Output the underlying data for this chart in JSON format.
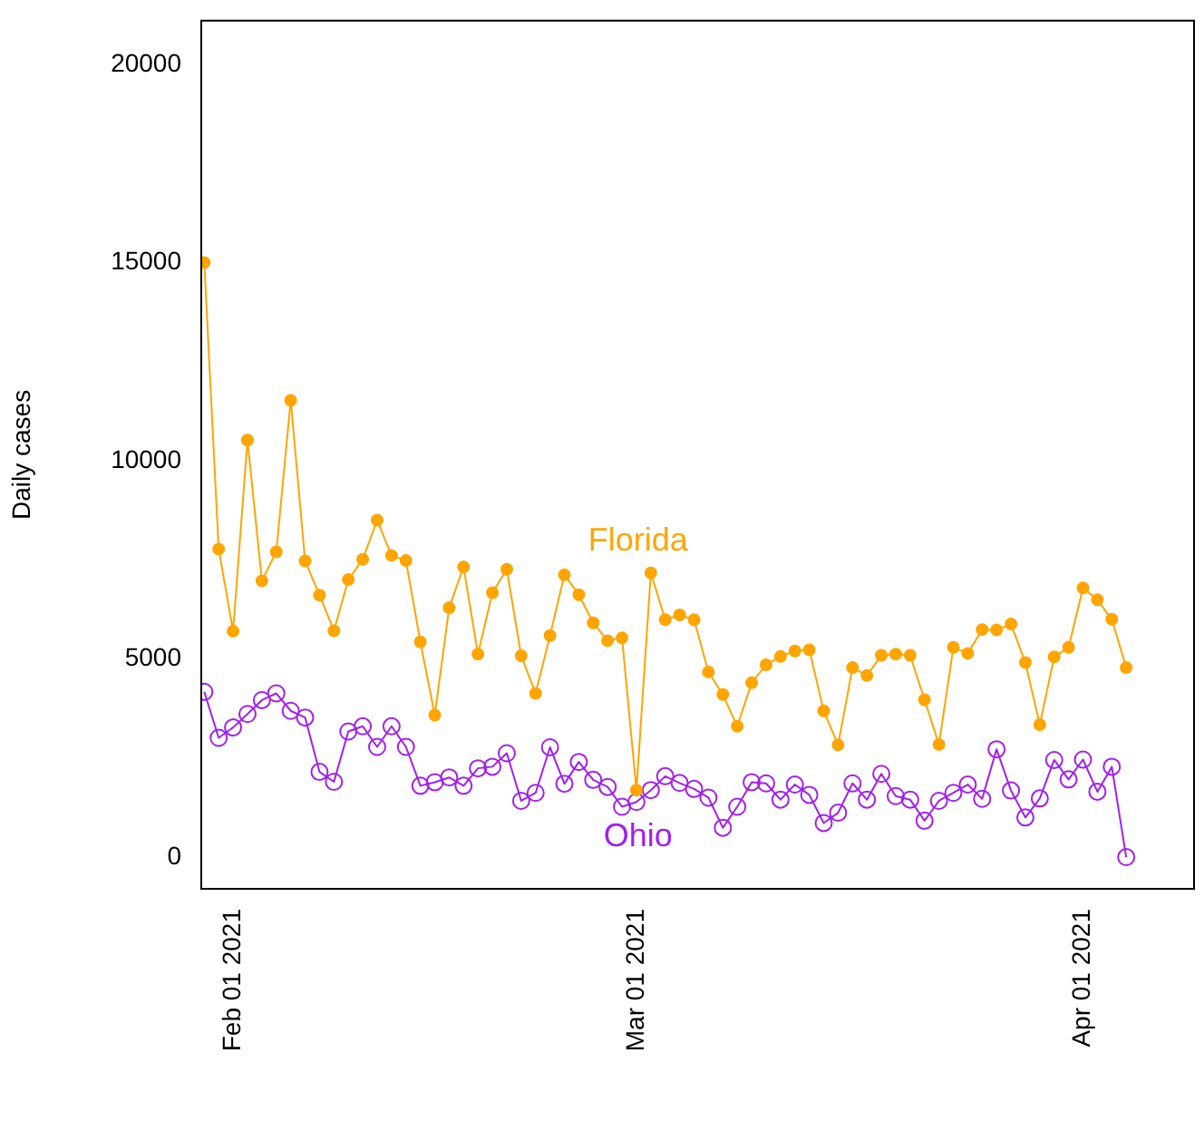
{
  "chart_data": {
    "type": "line",
    "ylabel": "Daily cases",
    "x": [
      "2021-01-30",
      "2021-01-31",
      "2021-02-01",
      "2021-02-02",
      "2021-02-03",
      "2021-02-04",
      "2021-02-05",
      "2021-02-06",
      "2021-02-07",
      "2021-02-08",
      "2021-02-09",
      "2021-02-10",
      "2021-02-11",
      "2021-02-12",
      "2021-02-13",
      "2021-02-14",
      "2021-02-15",
      "2021-02-16",
      "2021-02-17",
      "2021-02-18",
      "2021-02-19",
      "2021-02-20",
      "2021-02-21",
      "2021-02-22",
      "2021-02-23",
      "2021-02-24",
      "2021-02-25",
      "2021-02-26",
      "2021-02-27",
      "2021-02-28",
      "2021-03-01",
      "2021-03-02",
      "2021-03-03",
      "2021-03-04",
      "2021-03-05",
      "2021-03-06",
      "2021-03-07",
      "2021-03-08",
      "2021-03-09",
      "2021-03-10",
      "2021-03-11",
      "2021-03-12",
      "2021-03-13",
      "2021-03-14",
      "2021-03-15",
      "2021-03-16",
      "2021-03-17",
      "2021-03-18",
      "2021-03-19",
      "2021-03-20",
      "2021-03-21",
      "2021-03-22",
      "2021-03-23",
      "2021-03-24",
      "2021-03-25",
      "2021-03-26",
      "2021-03-27",
      "2021-03-28",
      "2021-03-29",
      "2021-03-30",
      "2021-03-31",
      "2021-04-01",
      "2021-04-02",
      "2021-04-03",
      "2021-04-04"
    ],
    "series": [
      {
        "name": "Florida",
        "color": "#ffa500",
        "marker": "circle",
        "values": [
          15000,
          7770,
          5700,
          10520,
          6970,
          7700,
          11520,
          7470,
          6610,
          5710,
          7000,
          7510,
          8500,
          7610,
          7480,
          5430,
          3580,
          6290,
          7320,
          5120,
          6670,
          7260,
          5080,
          4130,
          5590,
          7120,
          6620,
          5910,
          5460,
          5530,
          1690,
          7170,
          5990,
          6110,
          5990,
          4670,
          4100,
          3300,
          4400,
          4850,
          5060,
          5200,
          5230,
          3690,
          2830,
          4780,
          4580,
          5090,
          5120,
          5090,
          3970,
          2840,
          5290,
          5140,
          5740,
          5730,
          5880,
          4910,
          3340,
          5050,
          5290,
          6790,
          6490,
          6000,
          4780
        ]
      },
      {
        "name": "Ohio",
        "color": "#a020f0",
        "marker": "circle",
        "values": [
          4170,
          3010,
          3270,
          3610,
          3960,
          4130,
          3690,
          3520,
          2150,
          1900,
          3170,
          3300,
          2780,
          3300,
          2780,
          1800,
          1890,
          2010,
          1800,
          2240,
          2280,
          2620,
          1420,
          1620,
          2770,
          1850,
          2400,
          1950,
          1770,
          1270,
          1390,
          1690,
          2040,
          1870,
          1720,
          1500,
          740,
          1270,
          1890,
          1860,
          1450,
          1830,
          1570,
          860,
          1120,
          1860,
          1450,
          2100,
          1540,
          1450,
          920,
          1420,
          1620,
          1830,
          1470,
          2720,
          1680,
          1000,
          1480,
          2450,
          1960,
          2460,
          1650,
          2280,
          0
        ]
      }
    ],
    "xlim": [
      "2021-01-29T19:00",
      "2021-04-08T17:00"
    ],
    "xticks": [
      {
        "value": "2021-02-01",
        "label": "Feb 01 2021"
      },
      {
        "value": "2021-03-01",
        "label": "Mar 01 2021"
      },
      {
        "value": "2021-04-01",
        "label": "Apr 01 2021"
      }
    ],
    "ylim": [
      -800,
      21100
    ],
    "yticks": [
      0,
      5000,
      10000,
      15000,
      20000
    ],
    "grid": false,
    "legend": false
  }
}
